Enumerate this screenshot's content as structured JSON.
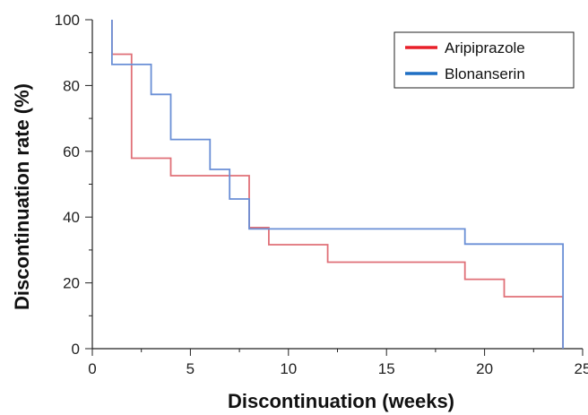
{
  "chart_data": {
    "type": "line",
    "step": true,
    "xlabel": "Discontinuation (weeks)",
    "ylabel": "Discontinuation rate (%)",
    "xlim": [
      0,
      25
    ],
    "ylim": [
      0,
      100
    ],
    "xticks": [
      0,
      5,
      10,
      15,
      20,
      25
    ],
    "yticks": [
      0,
      20,
      40,
      60,
      80,
      100
    ],
    "grid": false,
    "legend_position": "top-right",
    "series": [
      {
        "name": "Aripiprazole",
        "color": "#e07078",
        "legend_color": "#e8202a",
        "points": [
          [
            1,
            100
          ],
          [
            1,
            89.5
          ],
          [
            2,
            89.5
          ],
          [
            2,
            57.9
          ],
          [
            4,
            57.9
          ],
          [
            4,
            52.6
          ],
          [
            8,
            52.6
          ],
          [
            8,
            36.8
          ],
          [
            9,
            36.8
          ],
          [
            9,
            31.6
          ],
          [
            12,
            31.6
          ],
          [
            12,
            26.3
          ],
          [
            19,
            26.3
          ],
          [
            19,
            21.1
          ],
          [
            21,
            21.1
          ],
          [
            21,
            15.8
          ],
          [
            24,
            15.8
          ],
          [
            24,
            0
          ]
        ]
      },
      {
        "name": "Blonanserin",
        "color": "#6a8fd6",
        "legend_color": "#1f6fc4",
        "points": [
          [
            1,
            100
          ],
          [
            1,
            86.4
          ],
          [
            3,
            86.4
          ],
          [
            3,
            77.3
          ],
          [
            4,
            77.3
          ],
          [
            4,
            63.6
          ],
          [
            6,
            63.6
          ],
          [
            6,
            54.5
          ],
          [
            7,
            54.5
          ],
          [
            7,
            45.5
          ],
          [
            8,
            45.5
          ],
          [
            8,
            36.4
          ],
          [
            19,
            36.4
          ],
          [
            19,
            31.8
          ],
          [
            24,
            31.8
          ],
          [
            24,
            0
          ]
        ]
      }
    ]
  }
}
